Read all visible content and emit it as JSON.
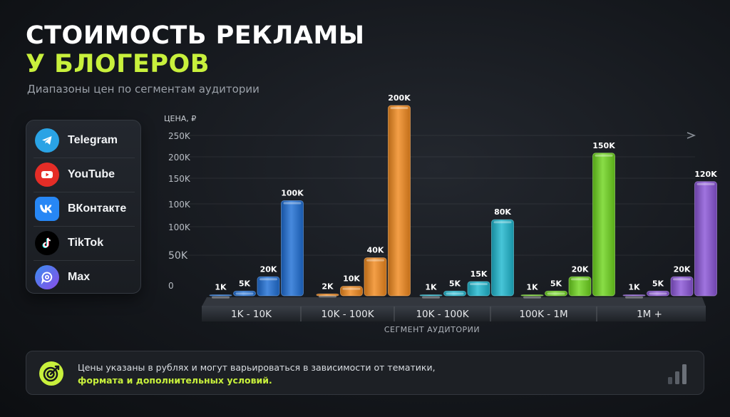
{
  "header": {
    "title_line1": "СТОИМОСТЬ РЕКЛАМЫ",
    "title_line2": "У БЛОГЕРОВ",
    "subtitle": "Диапазоны цен по сегментам аудитории"
  },
  "legend": {
    "items": [
      {
        "label": "Telegram",
        "icon": "telegram-icon",
        "color": "#2aa3e5"
      },
      {
        "label": "YouTube",
        "icon": "youtube-icon",
        "color": "#e52d27"
      },
      {
        "label": "ВКонтакте",
        "icon": "vk-icon",
        "color": "#2787f5"
      },
      {
        "label": "TikTok",
        "icon": "tiktok-icon",
        "color": "#000000"
      },
      {
        "label": "Max",
        "icon": "max-icon",
        "color": "#5b54e8"
      }
    ]
  },
  "colors": {
    "accent": "#c8f03c",
    "groups": [
      "#1f6fd6",
      "#f28a1e",
      "#1fb8d0",
      "#6fd61e",
      "#8b55d8"
    ]
  },
  "chart_data": {
    "type": "bar",
    "ylabel": "ЦЕНА, ₽",
    "xlabel": "СЕГМЕНТ АУДИТОРИИ",
    "y_tick_labels": [
      "0",
      "50K",
      "100K",
      "100K",
      "150K",
      "200K",
      "250K"
    ],
    "categories": [
      "1K - 10K",
      "10K - 100K",
      "10K - 100K",
      "100K - 1M",
      "1M +"
    ],
    "groups": [
      {
        "category": "1K - 10K",
        "values": [
          1000,
          5000,
          20000,
          100000
        ],
        "labels": [
          "1K",
          "5K",
          "20K",
          "100K"
        ]
      },
      {
        "category": "10K - 100K",
        "values": [
          2000,
          10000,
          40000,
          200000
        ],
        "labels": [
          "2K",
          "10K",
          "40K",
          "200K"
        ]
      },
      {
        "category": "10K - 100K",
        "values": [
          1000,
          5000,
          15000,
          80000
        ],
        "labels": [
          "1K",
          "5K",
          "15K",
          "80K"
        ]
      },
      {
        "category": "100K - 1M",
        "values": [
          1000,
          5000,
          20000,
          150000
        ],
        "labels": [
          "1K",
          "5K",
          "20K",
          "150K"
        ]
      },
      {
        "category": "1M +",
        "values": [
          1000,
          5000,
          20000,
          120000
        ],
        "labels": [
          "1K",
          "5K",
          "20K",
          "120K"
        ]
      }
    ]
  },
  "note": {
    "line1": "Цены указаны в рублях и могут варьироваться в зависимости от тематики,",
    "line2": "формата и дополнительных условий.",
    "icon": "target-icon",
    "corner_icon": "bar-chart-icon"
  }
}
